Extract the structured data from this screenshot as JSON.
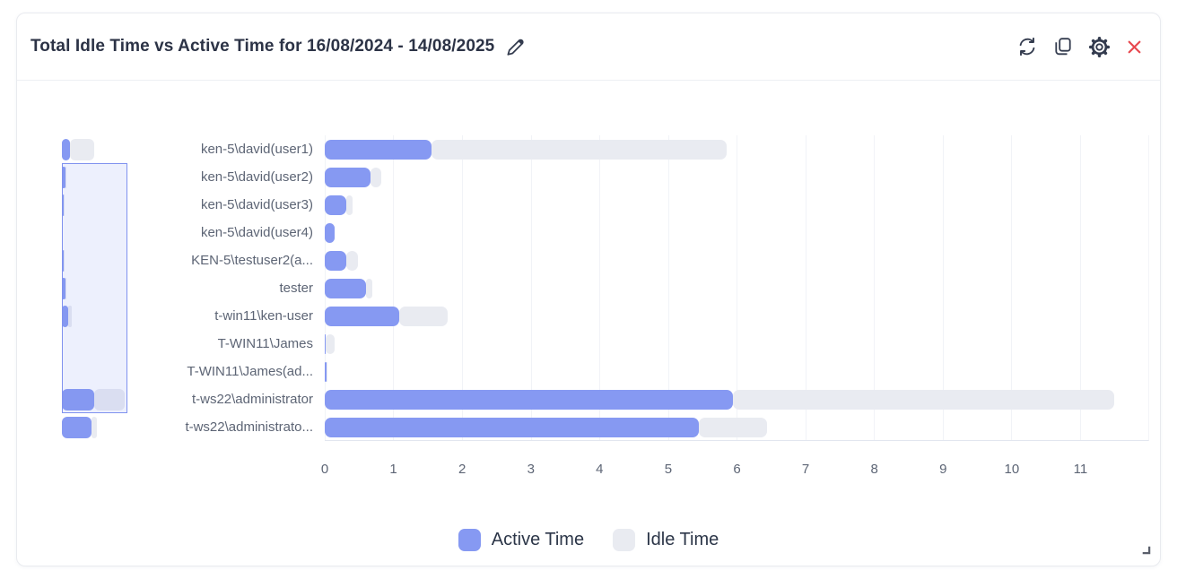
{
  "header": {
    "title": "Total Idle Time vs Active Time for 16/08/2024 - 14/08/2025",
    "actions": [
      {
        "id": "refresh",
        "label": "Refresh"
      },
      {
        "id": "copy",
        "label": "Copy"
      },
      {
        "id": "settings",
        "label": "Settings"
      },
      {
        "id": "close",
        "label": "Close"
      }
    ]
  },
  "colors": {
    "active": "#8699F2",
    "idle": "#E9EBF1",
    "close_red": "#E8484F",
    "icon_dark": "#333B4E",
    "nav_selection_border": "#8092EF"
  },
  "chart_data": {
    "type": "bar",
    "orientation": "horizontal",
    "stacked": true,
    "title": "Total Idle Time vs Active Time for 16/08/2024 - 14/08/2025",
    "categories": [
      "ken-5\\david(user1)",
      "ken-5\\david(user2)",
      "ken-5\\david(user3)",
      "ken-5\\david(user4)",
      "KEN-5\\testuser2(a...",
      "tester",
      "t-win11\\ken-user",
      "T-WIN11\\James",
      "T-WIN11\\James(ad...",
      "t-ws22\\administrator",
      "t-ws22\\administrato..."
    ],
    "series": [
      {
        "name": "Active Time",
        "color": "#8699F2",
        "values": [
          1.55,
          0.67,
          0.31,
          0.14,
          0.31,
          0.6,
          1.08,
          0.01,
          0.02,
          5.95,
          5.45
        ]
      },
      {
        "name": "Idle Time",
        "color": "#E9EBF1",
        "values": [
          4.3,
          0.15,
          0.1,
          0.0,
          0.17,
          0.09,
          0.71,
          0.14,
          0.02,
          5.55,
          1.0
        ]
      }
    ],
    "xlabel": "",
    "ylabel": "",
    "x_ticks": [
      0,
      1,
      2,
      3,
      4,
      5,
      6,
      7,
      8,
      9,
      10,
      11
    ],
    "xlim": [
      0,
      12
    ],
    "grid": true,
    "legend_position": "bottom",
    "y_navigator": {
      "visible": true,
      "window_start_index": 1,
      "window_end_index": 9
    }
  }
}
